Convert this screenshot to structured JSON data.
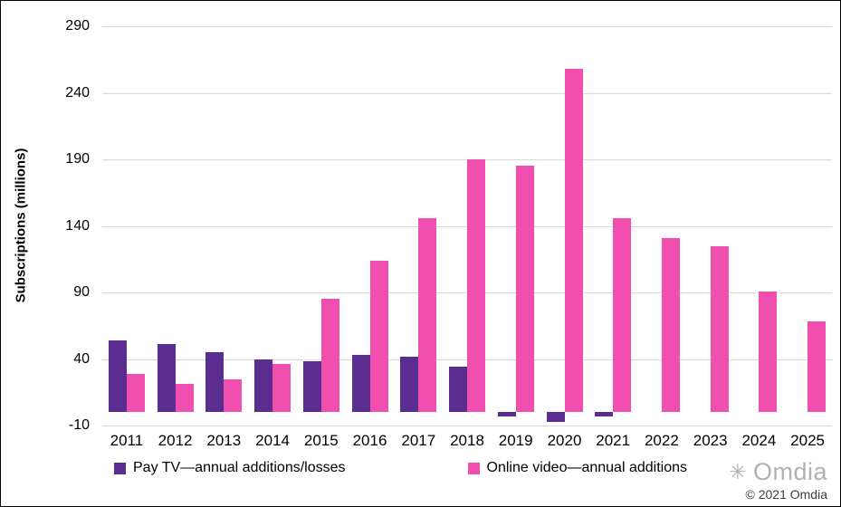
{
  "chart_data": {
    "type": "bar",
    "title": "",
    "ylabel": "Subscriptions (millions)",
    "categories": [
      "2011",
      "2012",
      "2013",
      "2014",
      "2015",
      "2016",
      "2017",
      "2018",
      "2019",
      "2020",
      "2021",
      "2022",
      "2023",
      "2024",
      "2025"
    ],
    "series": [
      {
        "name": "Pay TV—annual additions/losses",
        "color": "#5c2d91",
        "values": [
          54,
          51,
          45,
          40,
          38,
          43,
          42,
          34,
          -3,
          -7,
          -3,
          null,
          null,
          null,
          null
        ]
      },
      {
        "name": "Online video—annual additions",
        "color": "#f04fb0",
        "values": [
          29,
          21,
          25,
          36,
          85,
          114,
          146,
          190,
          185,
          258,
          146,
          131,
          125,
          91,
          68
        ]
      }
    ],
    "ylim": [
      -10,
      290
    ],
    "yticks": [
      -10,
      40,
      90,
      140,
      190,
      240,
      290
    ],
    "grid": true,
    "legend_position": "bottom"
  },
  "watermark": {
    "logo_icon": "sunburst-icon",
    "logo_text": "Omdia",
    "copyright": "© 2021 Omdia"
  }
}
